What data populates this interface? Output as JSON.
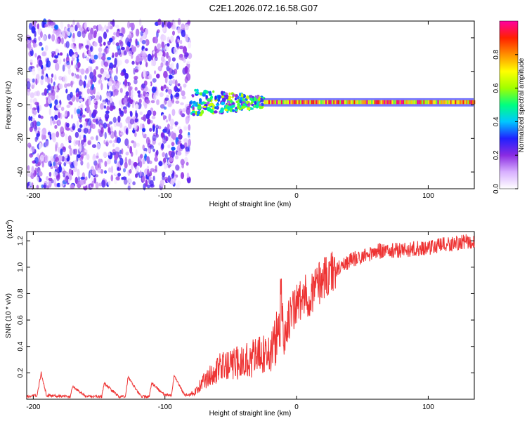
{
  "title": "C2E1.2026.072.16.58.G07",
  "chart_data": [
    {
      "type": "heatmap",
      "xlabel": "Height of straight line (km)",
      "ylabel": "Frequency (Hz)",
      "xlim": [
        -205,
        135
      ],
      "ylim": [
        -50,
        50
      ],
      "xticks": [
        -200,
        -100,
        0,
        100
      ],
      "yticks": [
        -40,
        -20,
        0,
        20,
        40
      ],
      "colorbar": {
        "label": "Normalized spectral amplitude",
        "range": [
          0,
          1
        ],
        "ticks": [
          "0.0",
          "0.2",
          "0.4",
          "0.6",
          "0.8"
        ],
        "colors": [
          "#ffffff",
          "#d8b0ff",
          "#8a2be2",
          "#2020ff",
          "#00c8ff",
          "#00ff80",
          "#a0ff00",
          "#ffff00",
          "#ff9000",
          "#ff2000",
          "#ff00a0"
        ]
      },
      "regions": [
        {
          "description_of_data": "broadband noise",
          "x": [
            -205,
            -81
          ],
          "freq": [
            -50,
            50
          ],
          "amplitude": 0.12
        },
        {
          "description_of_data": "scattered spots",
          "x": [
            -81,
            -25
          ],
          "freq": [
            -8,
            8
          ],
          "amplitude": 0.35
        },
        {
          "description_of_data": "signal line",
          "x": [
            -25,
            135
          ],
          "freq": [
            1,
            2
          ],
          "amplitude": 0.85
        }
      ]
    },
    {
      "type": "line",
      "xlabel": "Height of straight line (km)",
      "ylabel": "SNR (10 * v/v)",
      "y_multiplier": "(x10",
      "y_multiplier_exp": "4",
      "y_multiplier_close": ")",
      "xlim": [
        -205,
        135
      ],
      "ylim": [
        0,
        1.27
      ],
      "xticks": [
        -200,
        -100,
        0,
        100
      ],
      "yticks": [
        0.2,
        0.4,
        0.6,
        0.8,
        1.0,
        1.2
      ],
      "ytick_labels": [
        "0.2",
        "0.4",
        "0.6",
        "0.8",
        "1.0",
        "1.2"
      ],
      "color": "#ee3333",
      "x": [
        -205,
        -197,
        -194,
        -190,
        -172,
        -170,
        -160,
        -148,
        -146,
        -135,
        -130,
        -128,
        -118,
        -112,
        -110,
        -100,
        -95,
        -93,
        -85,
        -78,
        -70,
        -60,
        -50,
        -40,
        -30,
        -20,
        -15,
        -12,
        -10,
        -5,
        0,
        10,
        20,
        30,
        40,
        50,
        60,
        80,
        100,
        120,
        135
      ],
      "y": [
        0.02,
        0.03,
        0.2,
        0.03,
        0.02,
        0.1,
        0.02,
        0.02,
        0.12,
        0.02,
        0.02,
        0.17,
        0.02,
        0.02,
        0.12,
        0.03,
        0.03,
        0.18,
        0.03,
        0.04,
        0.12,
        0.2,
        0.22,
        0.25,
        0.28,
        0.3,
        0.4,
        0.55,
        0.5,
        0.62,
        0.72,
        0.8,
        0.92,
        0.98,
        1.05,
        1.08,
        1.12,
        1.13,
        1.15,
        1.18,
        1.2
      ]
    }
  ]
}
